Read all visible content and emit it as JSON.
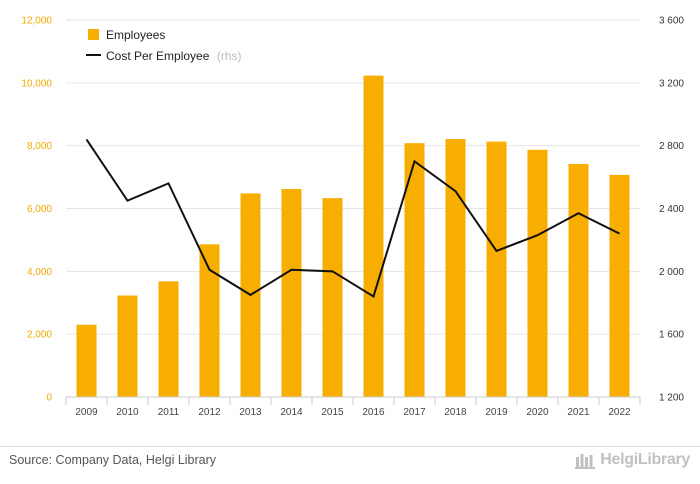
{
  "chart_data": {
    "type": "bar",
    "categories": [
      "2009",
      "2010",
      "2011",
      "2012",
      "2013",
      "2014",
      "2015",
      "2016",
      "2017",
      "2018",
      "2019",
      "2020",
      "2021",
      "2022"
    ],
    "series": [
      {
        "name": "Employees",
        "type": "bar",
        "axis": "left",
        "values": [
          2300,
          3230,
          3680,
          4860,
          6480,
          6620,
          6330,
          10230,
          8080,
          8210,
          8130,
          7870,
          7420,
          7070
        ]
      },
      {
        "name": "Cost Per Employee",
        "name_suffix": "(rhs)",
        "type": "line",
        "axis": "right",
        "values": [
          2840,
          2450,
          2560,
          2010,
          1850,
          2010,
          2000,
          1840,
          2700,
          2510,
          2130,
          2230,
          2370,
          2240
        ]
      }
    ],
    "y_left": {
      "lim": [
        0,
        12000
      ],
      "ticks": [
        "0",
        "2,000",
        "4,000",
        "6,000",
        "8,000",
        "10,000",
        "12,000"
      ]
    },
    "y_right": {
      "lim": [
        1200,
        3600
      ],
      "ticks": [
        "1 200",
        "1 600",
        "2 000",
        "2 400",
        "2 800",
        "3 200",
        "3 600"
      ]
    },
    "grid": true,
    "legend_position": "top-left",
    "colors": {
      "bar": "#f7ae00",
      "line": "#111111",
      "grid": "#e6e6e6",
      "left_ticks": "#f2a900"
    }
  },
  "footer": {
    "source": "Source: Company Data, Helgi Library",
    "logo_text": "HelgiLibrary"
  }
}
